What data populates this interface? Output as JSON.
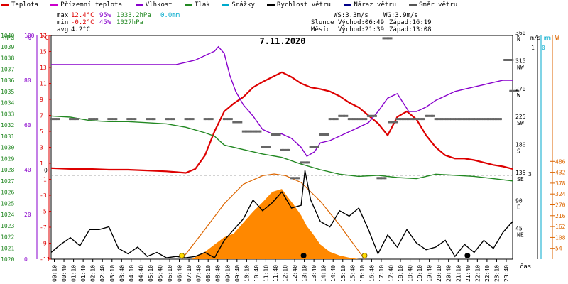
{
  "legend": [
    {
      "label": "Teplota",
      "color": "#dd0000"
    },
    {
      "label": "Přízemní teplota",
      "color": "#cc00cc"
    },
    {
      "label": "Vlhkost",
      "color": "#8800cc"
    },
    {
      "label": "Tlak",
      "color": "#228822"
    },
    {
      "label": "Srážky",
      "color": "#00aacc"
    },
    {
      "label": "Rychlost větru",
      "color": "#000000"
    },
    {
      "label": "Náraz větru",
      "color": "#000088"
    },
    {
      "label": "Směr větru",
      "color": "#555555"
    }
  ],
  "stats": {
    "max_label": "max",
    "max_temp": "12.4°C",
    "max_hum": "95%",
    "max_press": "1033.2hPa",
    "max_rain": "0.0mm",
    "min_label": "min",
    "min_temp": "-0.2°C",
    "min_hum": "45%",
    "min_press": "1027hPa",
    "avg_label": "avg",
    "avg_temp": "4.2°C",
    "ws": "WS:3.3m/s",
    "wg": "WG:3.9m/s",
    "sun_label": "Slunce",
    "sun_rise": "Východ:06:49",
    "sun_set": "Západ:16:19",
    "moon_label": "Měsíc",
    "moon_rise": "Východ:21:39",
    "moon_set": "Západ:13:08"
  },
  "chart_data": {
    "type": "line",
    "title": "7.11.2020",
    "xlabel": "čas",
    "x_ticks": [
      "00:10",
      "00:40",
      "01:10",
      "01:40",
      "02:10",
      "02:40",
      "03:10",
      "03:40",
      "04:10",
      "04:40",
      "05:10",
      "05:40",
      "06:10",
      "06:40",
      "07:10",
      "07:40",
      "08:10",
      "08:40",
      "09:10",
      "09:40",
      "10:10",
      "10:40",
      "11:10",
      "11:40",
      "12:10",
      "12:40",
      "13:10",
      "13:40",
      "14:10",
      "14:40",
      "15:10",
      "15:40",
      "16:10",
      "16:40",
      "17:10",
      "17:40",
      "18:10",
      "18:40",
      "19:10",
      "19:40",
      "20:10",
      "20:40",
      "21:10",
      "21:40",
      "22:10",
      "22:40",
      "23:10",
      "23:40"
    ],
    "axes": {
      "pressure": {
        "unit": "hPa",
        "range": [
          1020,
          1040
        ],
        "ticks": [
          "1020",
          "1021",
          "1022",
          "1023",
          "1024",
          "1025",
          "1026",
          "1027",
          "1028",
          "1029",
          "1030",
          "1031",
          "1032",
          "1033",
          "1034",
          "1035",
          "1036",
          "1037",
          "1038",
          "1039",
          "1040"
        ]
      },
      "humidity": {
        "unit": "%",
        "range": [
          0,
          100
        ],
        "ticks": [
          "0",
          "20",
          "40",
          "60",
          "80",
          "100"
        ]
      },
      "temperature": {
        "unit": "°C",
        "range": [
          -11,
          17
        ],
        "ticks": [
          "-11",
          "-9",
          "-7",
          "-5",
          "-3",
          "-1",
          "1",
          "3",
          "5",
          "7",
          "9",
          "11",
          "13",
          "15",
          "17"
        ]
      },
      "ground_temp_zero": "0",
      "wind_dir": {
        "unit": "°",
        "range": [
          0,
          360
        ],
        "ticks": [
          {
            "v": "0"
          },
          {
            "v": "45",
            "d": "NE"
          },
          {
            "v": "90",
            "d": "E"
          },
          {
            "v": "135",
            "d": "SE"
          },
          {
            "v": "180",
            "d": "S"
          },
          {
            "v": "225",
            "d": "SW"
          },
          {
            "v": "270",
            "d": "W"
          },
          {
            "v": "315",
            "d": "NW"
          },
          {
            "v": "360",
            "d": "N"
          }
        ]
      },
      "wind_speed": {
        "unit": "m/s",
        "top_tick": "3",
        "mid_tick": "1"
      },
      "rain": {
        "unit": "mm",
        "ticks": [
          "0",
          "-1"
        ]
      },
      "solar": {
        "unit": "W",
        "range": [
          0,
          540
        ],
        "ticks": [
          "54",
          "108",
          "162",
          "216",
          "270",
          "324",
          "378",
          "432",
          "486"
        ]
      }
    },
    "series": [
      {
        "name": "Teplota",
        "color": "#dd0000",
        "axis": "temperature",
        "points": [
          [
            0,
            0.4
          ],
          [
            1,
            0.3
          ],
          [
            2,
            0.3
          ],
          [
            3,
            0.2
          ],
          [
            4,
            0.2
          ],
          [
            5,
            0.1
          ],
          [
            6,
            0.0
          ],
          [
            6.5,
            -0.1
          ],
          [
            7,
            -0.2
          ],
          [
            7.5,
            0.3
          ],
          [
            8,
            2.0
          ],
          [
            8.5,
            5.0
          ],
          [
            9,
            7.5
          ],
          [
            9.5,
            8.5
          ],
          [
            10,
            9.3
          ],
          [
            10.5,
            10.5
          ],
          [
            11,
            11.2
          ],
          [
            11.5,
            11.8
          ],
          [
            12,
            12.4
          ],
          [
            12.5,
            11.8
          ],
          [
            13,
            11.0
          ],
          [
            13.5,
            10.5
          ],
          [
            14,
            10.3
          ],
          [
            14.5,
            10.0
          ],
          [
            15,
            9.4
          ],
          [
            15.5,
            8.6
          ],
          [
            16,
            8.0
          ],
          [
            16.5,
            7.0
          ],
          [
            17,
            6.0
          ],
          [
            17.5,
            4.5
          ],
          [
            18,
            6.8
          ],
          [
            18.5,
            7.5
          ],
          [
            19,
            6.5
          ],
          [
            19.5,
            4.5
          ],
          [
            20,
            3.0
          ],
          [
            20.5,
            2.0
          ],
          [
            21,
            1.6
          ],
          [
            21.5,
            1.6
          ],
          [
            22,
            1.4
          ],
          [
            22.5,
            1.1
          ],
          [
            23,
            0.8
          ],
          [
            23.5,
            0.6
          ],
          [
            24,
            0.3
          ]
        ]
      },
      {
        "name": "Vlhkost",
        "color": "#8800cc",
        "axis": "humidity",
        "points": [
          [
            0,
            87
          ],
          [
            1,
            87
          ],
          [
            2,
            87
          ],
          [
            3,
            87
          ],
          [
            4,
            87
          ],
          [
            5,
            87
          ],
          [
            6,
            87
          ],
          [
            6.5,
            87
          ],
          [
            7,
            88
          ],
          [
            7.5,
            89
          ],
          [
            8,
            91
          ],
          [
            8.5,
            93
          ],
          [
            8.7,
            95
          ],
          [
            9,
            92
          ],
          [
            9.3,
            82
          ],
          [
            9.6,
            75
          ],
          [
            10,
            69
          ],
          [
            10.5,
            64
          ],
          [
            11,
            58
          ],
          [
            11.5,
            56
          ],
          [
            12,
            56
          ],
          [
            12.5,
            54
          ],
          [
            13,
            50
          ],
          [
            13.3,
            46
          ],
          [
            13.7,
            48
          ],
          [
            14,
            52
          ],
          [
            14.5,
            53
          ],
          [
            15,
            55
          ],
          [
            15.5,
            57
          ],
          [
            16,
            59
          ],
          [
            16.5,
            61
          ],
          [
            17,
            66
          ],
          [
            17.5,
            72
          ],
          [
            18,
            74
          ],
          [
            18.3,
            70
          ],
          [
            18.6,
            66
          ],
          [
            19,
            66
          ],
          [
            19.5,
            68
          ],
          [
            20,
            71
          ],
          [
            20.5,
            73
          ],
          [
            21,
            75
          ],
          [
            21.5,
            76
          ],
          [
            22,
            77
          ],
          [
            22.5,
            78
          ],
          [
            23,
            79
          ],
          [
            23.5,
            80
          ],
          [
            24,
            80
          ]
        ]
      },
      {
        "name": "Tlak",
        "color": "#228822",
        "axis": "pressure",
        "points": [
          [
            0,
            1032.8
          ],
          [
            1,
            1032.7
          ],
          [
            2,
            1032.4
          ],
          [
            3,
            1032.3
          ],
          [
            4,
            1032.3
          ],
          [
            5,
            1032.2
          ],
          [
            6,
            1032.1
          ],
          [
            7,
            1031.8
          ],
          [
            8,
            1031.3
          ],
          [
            8.5,
            1031.0
          ],
          [
            9,
            1030.2
          ],
          [
            10,
            1029.8
          ],
          [
            11,
            1029.4
          ],
          [
            12,
            1029.1
          ],
          [
            13,
            1028.5
          ],
          [
            14,
            1028.0
          ],
          [
            15,
            1027.6
          ],
          [
            16,
            1027.4
          ],
          [
            17,
            1027.5
          ],
          [
            18,
            1027.3
          ],
          [
            19,
            1027.2
          ],
          [
            20,
            1027.6
          ],
          [
            21,
            1027.5
          ],
          [
            22,
            1027.4
          ],
          [
            23,
            1027.2
          ],
          [
            24,
            1027.0
          ]
        ]
      },
      {
        "name": "Rychlost větru",
        "color": "#000000",
        "axis": "wind_speed_index",
        "points": [
          [
            0,
            0.25
          ],
          [
            0.5,
            0.55
          ],
          [
            1,
            0.8
          ],
          [
            1.5,
            0.5
          ],
          [
            2,
            1.1
          ],
          [
            2.5,
            1.1
          ],
          [
            3,
            1.2
          ],
          [
            3.5,
            0.4
          ],
          [
            4,
            0.2
          ],
          [
            4.5,
            0.45
          ],
          [
            5,
            0.1
          ],
          [
            5.5,
            0.25
          ],
          [
            6,
            0.05
          ],
          [
            6.5,
            0.1
          ],
          [
            7,
            0.05
          ],
          [
            7.5,
            0.1
          ],
          [
            8,
            0.25
          ],
          [
            8.5,
            0.05
          ],
          [
            9,
            0.7
          ],
          [
            9.5,
            1.1
          ],
          [
            10,
            1.5
          ],
          [
            10.5,
            2.2
          ],
          [
            11,
            1.8
          ],
          [
            11.5,
            2.1
          ],
          [
            12,
            2.5
          ],
          [
            12.5,
            1.9
          ],
          [
            13,
            2.0
          ],
          [
            13.2,
            3.3
          ],
          [
            13.5,
            2.2
          ],
          [
            14,
            1.4
          ],
          [
            14.5,
            1.2
          ],
          [
            15,
            1.8
          ],
          [
            15.5,
            1.6
          ],
          [
            16,
            1.9
          ],
          [
            16.5,
            1.1
          ],
          [
            17,
            0.2
          ],
          [
            17.5,
            0.9
          ],
          [
            18,
            0.45
          ],
          [
            18.5,
            1.1
          ],
          [
            19,
            0.6
          ],
          [
            19.5,
            0.35
          ],
          [
            20,
            0.45
          ],
          [
            20.5,
            0.7
          ],
          [
            21,
            0.1
          ],
          [
            21.5,
            0.55
          ],
          [
            22,
            0.25
          ],
          [
            22.5,
            0.7
          ],
          [
            23,
            0.4
          ],
          [
            23.5,
            1.0
          ],
          [
            24,
            1.4
          ]
        ]
      },
      {
        "name": "Slunce",
        "color": "#dd6600",
        "axis": "solar_theoretical_index",
        "points": [
          [
            6.8,
            0
          ],
          [
            8,
            0.35
          ],
          [
            9,
            0.65
          ],
          [
            10,
            0.88
          ],
          [
            11,
            0.98
          ],
          [
            11.6,
            1.0
          ],
          [
            12.2,
            0.98
          ],
          [
            13,
            0.9
          ],
          [
            14,
            0.68
          ],
          [
            15,
            0.4
          ],
          [
            16.3,
            0
          ]
        ]
      },
      {
        "name": "Sluneční svit",
        "color": "#ff8800",
        "axis": "solar_actual_index",
        "points": [
          [
            7.3,
            0
          ],
          [
            8,
            0.1
          ],
          [
            8.5,
            0.2
          ],
          [
            9,
            0.3
          ],
          [
            9.5,
            0.35
          ],
          [
            10,
            0.5
          ],
          [
            10.5,
            0.65
          ],
          [
            11,
            0.78
          ],
          [
            11.5,
            0.92
          ],
          [
            12,
            0.96
          ],
          [
            12.3,
            0.85
          ],
          [
            12.6,
            0.75
          ],
          [
            13,
            0.6
          ],
          [
            13.3,
            0.45
          ],
          [
            13.6,
            0.35
          ],
          [
            14,
            0.2
          ],
          [
            14.5,
            0.1
          ],
          [
            15,
            0.05
          ],
          [
            15.5,
            0.02
          ],
          [
            16,
            0
          ]
        ]
      }
    ],
    "wind_dir_marks": [
      [
        0,
        225
      ],
      [
        1,
        225
      ],
      [
        2,
        225
      ],
      [
        3,
        225
      ],
      [
        4,
        225
      ],
      [
        5,
        225
      ],
      [
        6,
        225
      ],
      [
        7,
        225
      ],
      [
        8,
        225
      ],
      [
        9,
        225
      ],
      [
        9.5,
        220
      ],
      [
        10,
        205
      ],
      [
        10.5,
        205
      ],
      [
        11,
        180
      ],
      [
        11.5,
        200
      ],
      [
        12,
        175
      ],
      [
        12.5,
        130
      ],
      [
        13,
        155
      ],
      [
        13.5,
        180
      ],
      [
        14,
        200
      ],
      [
        14.5,
        225
      ],
      [
        15,
        230
      ],
      [
        15.5,
        225
      ],
      [
        16,
        225
      ],
      [
        16.5,
        230
      ],
      [
        17,
        130
      ],
      [
        17.3,
        355
      ],
      [
        17.6,
        220
      ],
      [
        18,
        225
      ],
      [
        18.5,
        225
      ],
      [
        19,
        225
      ],
      [
        19.5,
        230
      ],
      [
        20,
        225
      ],
      [
        20.5,
        225
      ],
      [
        21,
        225
      ],
      [
        21.5,
        225
      ],
      [
        22,
        225
      ],
      [
        22.5,
        225
      ],
      [
        23,
        225
      ],
      [
        23.6,
        320
      ],
      [
        23.9,
        270
      ]
    ],
    "wind_dir_dashed_level": 135,
    "sun_marks": [
      {
        "name": "Východ slunce",
        "x": 6.8
      },
      {
        "name": "Západ slunce",
        "x": 16.3
      }
    ],
    "moon_marks": [
      {
        "name": "Východ měsíce",
        "x": 21.65
      },
      {
        "name": "Západ měsíce",
        "x": 13.13
      }
    ]
  }
}
